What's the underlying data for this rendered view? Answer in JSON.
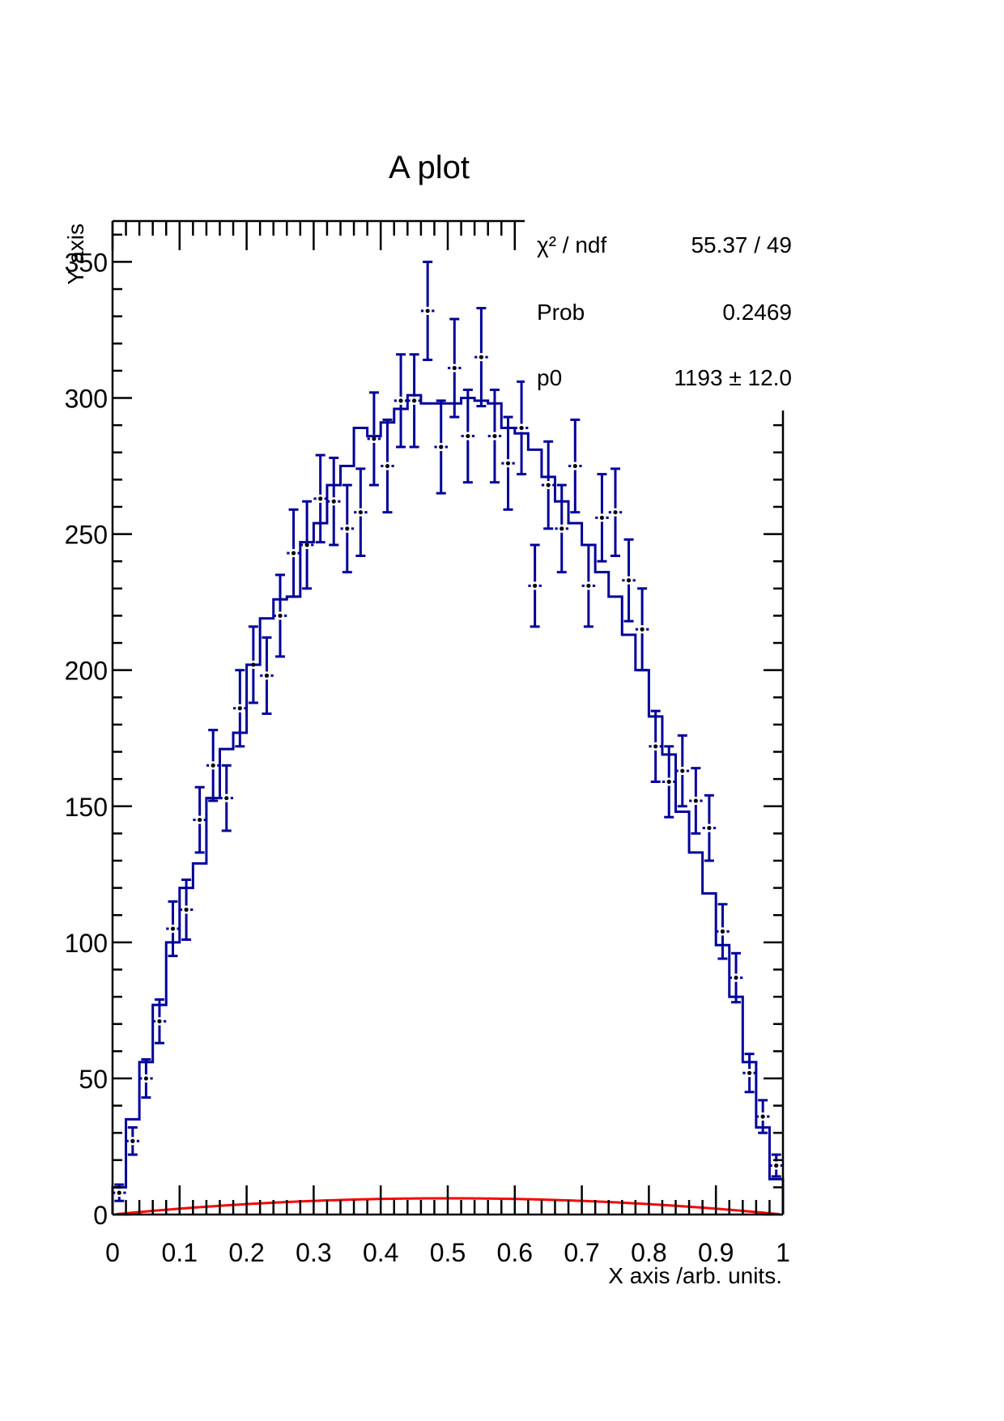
{
  "chart_data": {
    "type": "histogram",
    "title": "A plot",
    "xlabel": "X axis /arb. units.",
    "ylabel": "Y axis",
    "xlim": [
      0,
      1
    ],
    "ylim": [
      0,
      365
    ],
    "x_ticks": [
      "0",
      "0.1",
      "0.2",
      "0.3",
      "0.4",
      "0.5",
      "0.6",
      "0.7",
      "0.8",
      "0.9",
      "1"
    ],
    "y_ticks": [
      "0",
      "50",
      "100",
      "150",
      "200",
      "250",
      "300",
      "350"
    ],
    "bin_width": 0.02,
    "histogram": {
      "color": "#000099",
      "bin_edges_start": 0,
      "values": [
        10,
        35,
        56,
        77,
        100,
        120,
        129,
        153,
        171,
        177,
        202,
        219,
        226,
        227,
        247,
        254,
        268,
        275,
        289,
        286,
        291,
        296,
        301,
        298,
        298,
        298,
        300,
        299,
        298,
        289,
        287,
        281,
        271,
        262,
        254,
        246,
        236,
        227,
        213,
        200,
        183,
        169,
        148,
        133,
        118,
        99,
        80,
        56,
        32,
        13
      ]
    },
    "points": {
      "color": "#000099",
      "x": [
        0.01,
        0.03,
        0.05,
        0.07,
        0.09,
        0.11,
        0.13,
        0.15,
        0.17,
        0.19,
        0.21,
        0.23,
        0.25,
        0.27,
        0.29,
        0.31,
        0.33,
        0.35,
        0.37,
        0.39,
        0.41,
        0.43,
        0.45,
        0.47,
        0.49,
        0.51,
        0.53,
        0.55,
        0.57,
        0.59,
        0.61,
        0.63,
        0.65,
        0.67,
        0.69,
        0.71,
        0.73,
        0.75,
        0.77,
        0.79,
        0.81,
        0.83,
        0.85,
        0.87,
        0.89,
        0.91,
        0.93,
        0.95,
        0.97,
        0.99
      ],
      "y": [
        8,
        27,
        50,
        71,
        105,
        112,
        145,
        165,
        153,
        186,
        202,
        198,
        220,
        243,
        246,
        263,
        262,
        252,
        258,
        285,
        275,
        299,
        299,
        332,
        282,
        311,
        286,
        315,
        286,
        276,
        289,
        231,
        268,
        252,
        275,
        231,
        256,
        258,
        233,
        215,
        172,
        159,
        163,
        152,
        142,
        104,
        87,
        52,
        36,
        18
      ],
      "errors": [
        3,
        5,
        7,
        8,
        10,
        11,
        12,
        13,
        12,
        14,
        14,
        14,
        15,
        16,
        16,
        16,
        16,
        16,
        16,
        17,
        17,
        17,
        17,
        18,
        17,
        18,
        17,
        18,
        17,
        17,
        17,
        15,
        16,
        16,
        17,
        15,
        16,
        16,
        15,
        15,
        13,
        13,
        13,
        12,
        12,
        10,
        9,
        7,
        6,
        4
      ]
    },
    "fit": {
      "color": "#ff0000",
      "function": "p0*x*(1-x)",
      "p0": 1193
    },
    "stats_box": {
      "rows": [
        {
          "label": "χ² / ndf",
          "value": "55.37 / 49"
        },
        {
          "label": "Prob",
          "value": "0.2469"
        },
        {
          "label": "p0",
          "value": "1193 ± 12.0"
        }
      ]
    },
    "grid": false
  }
}
